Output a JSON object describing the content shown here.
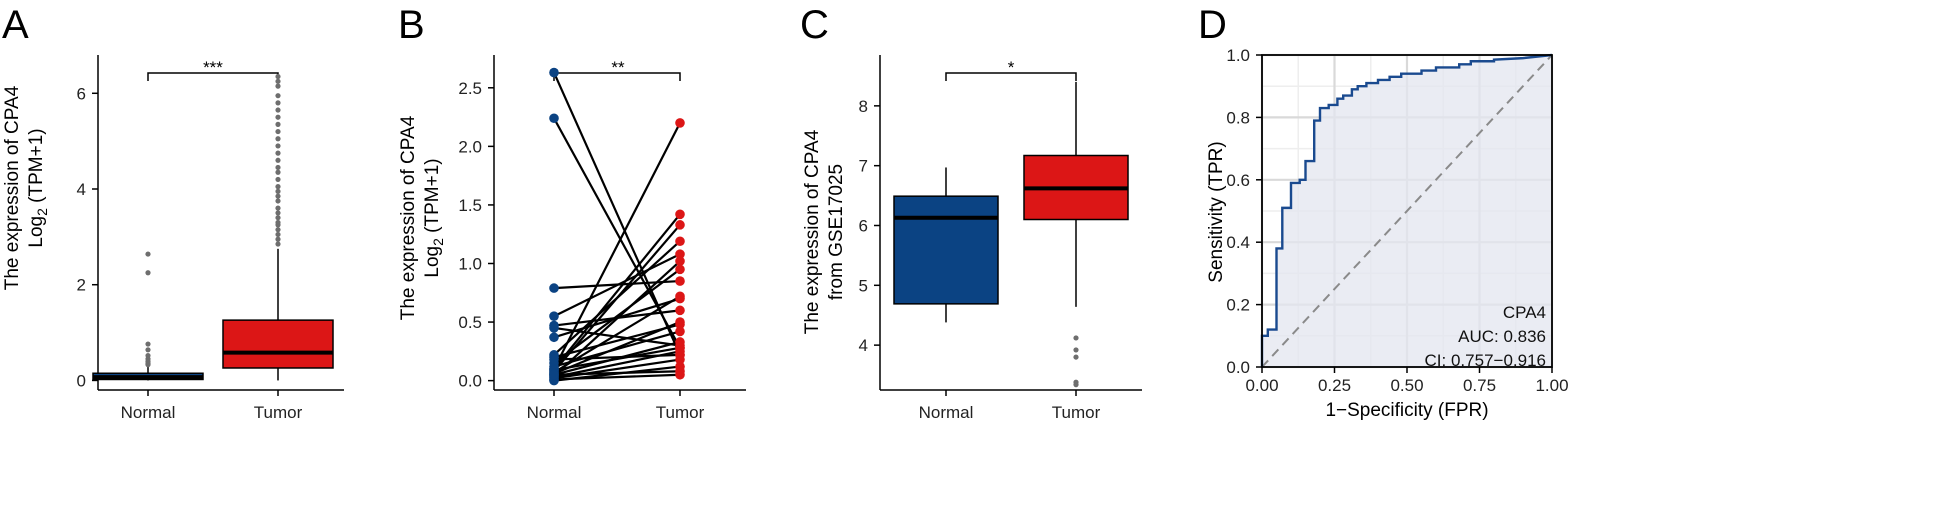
{
  "colors": {
    "normal": "#0b4383",
    "tumor": "#dc1616",
    "roc_line": "#1a4a8f",
    "roc_fill": "#e3e6ef",
    "diagonal": "#8a8a8a",
    "outlier": "#6e6e6e"
  },
  "chart_data": [
    {
      "panel": "A",
      "type": "box",
      "ylabel_line1": "The expression of CPA4",
      "ylabel_line2_base": "Log",
      "ylabel_line2_sub": "2",
      "ylabel_line2_rest": " (TPM+1)",
      "ylim": [
        -0.2,
        6.8
      ],
      "yticks": [
        0,
        2,
        4,
        6
      ],
      "categories": [
        "Normal",
        "Tumor"
      ],
      "significance": "***",
      "groups": [
        {
          "name": "Normal",
          "color_key": "normal",
          "q1": 0.02,
          "median": 0.07,
          "q3": 0.15,
          "whisker_low": 0.0,
          "whisker_high": 0.3,
          "outliers": [
            0.33,
            0.36,
            0.4,
            0.45,
            0.52,
            0.64,
            0.76,
            2.25,
            2.64
          ]
        },
        {
          "name": "Tumor",
          "color_key": "tumor",
          "q1": 0.26,
          "median": 0.58,
          "q3": 1.26,
          "whisker_low": 0.0,
          "whisker_high": 2.75,
          "outliers": [
            2.85,
            2.95,
            3.05,
            3.15,
            3.25,
            3.3,
            3.4,
            3.5,
            3.6,
            3.75,
            3.85,
            3.95,
            4.05,
            4.2,
            4.35,
            4.45,
            4.6,
            4.75,
            4.9,
            5.05,
            5.2,
            5.35,
            5.5,
            5.65,
            5.8,
            5.95,
            6.15,
            6.25,
            6.35
          ]
        }
      ]
    },
    {
      "panel": "B",
      "type": "paired",
      "ylabel_line1": "The expression of CPA4",
      "ylabel_line2_base": "Log",
      "ylabel_line2_sub": "2",
      "ylabel_line2_rest": " (TPM+1)",
      "ylim": [
        -0.08,
        2.78
      ],
      "yticks": [
        0.0,
        0.5,
        1.0,
        1.5,
        2.0,
        2.5
      ],
      "ytick_labels": [
        "0.0",
        "0.5",
        "1.0",
        "1.5",
        "2.0",
        "2.5"
      ],
      "categories": [
        "Normal",
        "Tumor"
      ],
      "significance": "**",
      "pairs": [
        [
          2.63,
          0.22
        ],
        [
          2.24,
          0.28
        ],
        [
          0.79,
          0.85
        ],
        [
          0.55,
          1.08
        ],
        [
          0.47,
          0.6
        ],
        [
          0.45,
          0.3
        ],
        [
          0.37,
          0.7
        ],
        [
          0.22,
          1.19
        ],
        [
          0.2,
          0.48
        ],
        [
          0.15,
          0.95
        ],
        [
          0.1,
          2.2
        ],
        [
          0.1,
          1.42
        ],
        [
          0.08,
          1.33
        ],
        [
          0.07,
          0.72
        ],
        [
          0.06,
          0.5
        ],
        [
          0.05,
          0.33
        ],
        [
          0.04,
          1.02
        ],
        [
          0.03,
          0.25
        ],
        [
          0.02,
          0.18
        ],
        [
          0.01,
          0.05
        ],
        [
          0.0,
          0.12
        ],
        [
          0.12,
          0.42
        ],
        [
          0.09,
          0.28
        ],
        [
          0.18,
          0.22
        ],
        [
          0.05,
          0.08
        ]
      ]
    },
    {
      "panel": "C",
      "type": "box",
      "ylabel_line1": "The expression of CPA4",
      "ylabel_line2": "from GSE17025",
      "ylim": [
        3.25,
        8.85
      ],
      "yticks": [
        4,
        5,
        6,
        7,
        8
      ],
      "categories": [
        "Normal",
        "Tumor"
      ],
      "significance": "*",
      "groups": [
        {
          "name": "Normal",
          "color_key": "normal",
          "q1": 4.69,
          "median": 6.13,
          "q3": 6.49,
          "whisker_low": 4.38,
          "whisker_high": 6.97,
          "outliers": []
        },
        {
          "name": "Tumor",
          "color_key": "tumor",
          "q1": 6.1,
          "median": 6.62,
          "q3": 7.17,
          "whisker_low": 4.64,
          "whisker_high": 8.4,
          "outliers": [
            4.12,
            3.92,
            3.8,
            3.38,
            3.34
          ]
        }
      ]
    },
    {
      "panel": "D",
      "type": "roc",
      "xlabel": "1−Specificity (FPR)",
      "ylabel": "Sensitivity (TPR)",
      "xlim": [
        0,
        1
      ],
      "ylim": [
        0,
        1
      ],
      "xticks": [
        0,
        0.25,
        0.5,
        0.75,
        1.0
      ],
      "xtick_labels": [
        "0.00",
        "0.25",
        "0.50",
        "0.75",
        "1.00"
      ],
      "yticks": [
        0,
        0.2,
        0.4,
        0.6,
        0.8,
        1.0
      ],
      "ytick_labels": [
        "0.0",
        "0.2",
        "0.4",
        "0.6",
        "0.8",
        "1.0"
      ],
      "label_gene": "CPA4",
      "label_auc": "AUC: 0.836",
      "label_ci": "CI: 0.757−0.916",
      "curve": [
        [
          0,
          0
        ],
        [
          0,
          0.1
        ],
        [
          0.02,
          0.1
        ],
        [
          0.02,
          0.12
        ],
        [
          0.05,
          0.12
        ],
        [
          0.05,
          0.38
        ],
        [
          0.07,
          0.38
        ],
        [
          0.07,
          0.51
        ],
        [
          0.1,
          0.51
        ],
        [
          0.1,
          0.59
        ],
        [
          0.13,
          0.59
        ],
        [
          0.13,
          0.6
        ],
        [
          0.15,
          0.6
        ],
        [
          0.15,
          0.66
        ],
        [
          0.18,
          0.66
        ],
        [
          0.18,
          0.79
        ],
        [
          0.2,
          0.79
        ],
        [
          0.2,
          0.83
        ],
        [
          0.23,
          0.83
        ],
        [
          0.23,
          0.84
        ],
        [
          0.26,
          0.84
        ],
        [
          0.26,
          0.86
        ],
        [
          0.28,
          0.86
        ],
        [
          0.28,
          0.87
        ],
        [
          0.31,
          0.87
        ],
        [
          0.31,
          0.89
        ],
        [
          0.33,
          0.89
        ],
        [
          0.33,
          0.9
        ],
        [
          0.36,
          0.9
        ],
        [
          0.36,
          0.91
        ],
        [
          0.4,
          0.91
        ],
        [
          0.4,
          0.92
        ],
        [
          0.44,
          0.92
        ],
        [
          0.44,
          0.93
        ],
        [
          0.48,
          0.93
        ],
        [
          0.48,
          0.94
        ],
        [
          0.55,
          0.94
        ],
        [
          0.55,
          0.95
        ],
        [
          0.6,
          0.95
        ],
        [
          0.6,
          0.96
        ],
        [
          0.68,
          0.96
        ],
        [
          0.68,
          0.97
        ],
        [
          0.72,
          0.97
        ],
        [
          0.72,
          0.98
        ],
        [
          0.8,
          0.98
        ],
        [
          0.8,
          0.985
        ],
        [
          0.9,
          0.99
        ],
        [
          1.0,
          1.0
        ]
      ]
    }
  ]
}
